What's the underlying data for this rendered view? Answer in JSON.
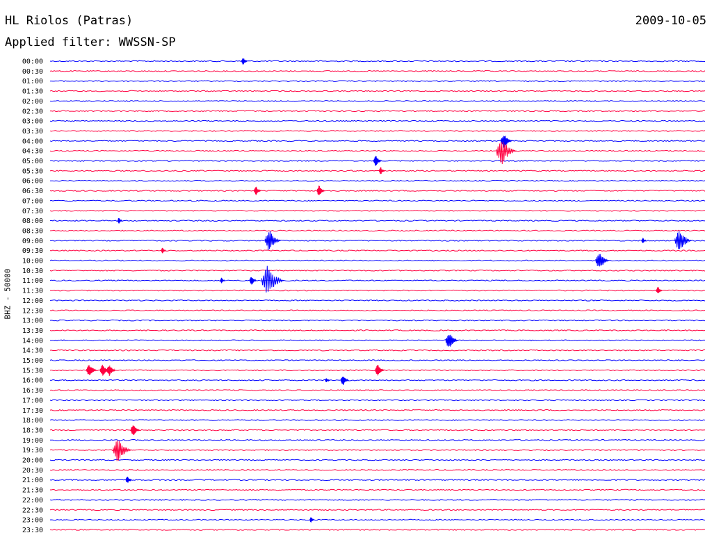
{
  "header": {
    "station": "HL Riolos (Patras)",
    "date": "2009-10-05",
    "filter_label": "Applied filter: WWSSN-SP"
  },
  "chart_data": {
    "type": "line",
    "title": "HL Riolos (Patras)",
    "subtitle": "Applied filter: WWSSN-SP",
    "ylabel": "BHZ - 50000",
    "colors": {
      "even_trace": "#0000ff",
      "odd_trace": "#ff0040"
    },
    "categories": [
      "00:00",
      "00:30",
      "01:00",
      "01:30",
      "02:00",
      "02:30",
      "03:00",
      "03:30",
      "04:00",
      "04:30",
      "05:00",
      "05:30",
      "06:00",
      "06:30",
      "07:00",
      "07:30",
      "08:00",
      "08:30",
      "09:00",
      "09:30",
      "10:00",
      "10:30",
      "11:00",
      "11:30",
      "12:00",
      "12:30",
      "13:00",
      "13:30",
      "14:00",
      "14:30",
      "15:00",
      "15:30",
      "16:00",
      "16:30",
      "17:00",
      "17:30",
      "18:00",
      "18:30",
      "19:00",
      "19:30",
      "20:00",
      "20:30",
      "21:00",
      "21:30",
      "22:00",
      "22:30",
      "23:00",
      "23:30"
    ],
    "xlim": [
      0,
      30
    ],
    "events": [
      {
        "trace": "00:00",
        "t": 8.9,
        "amp": 5
      },
      {
        "trace": "04:00",
        "t": 20.9,
        "amp": 10
      },
      {
        "trace": "04:30",
        "t": 20.9,
        "amp": 18
      },
      {
        "trace": "05:00",
        "t": 15.0,
        "amp": 7
      },
      {
        "trace": "05:30",
        "t": 15.2,
        "amp": 5
      },
      {
        "trace": "06:30",
        "t": 9.5,
        "amp": 6
      },
      {
        "trace": "06:30",
        "t": 12.4,
        "amp": 7
      },
      {
        "trace": "08:00",
        "t": 3.2,
        "amp": 4
      },
      {
        "trace": "09:00",
        "t": 10.2,
        "amp": 14
      },
      {
        "trace": "09:00",
        "t": 29.0,
        "amp": 15
      },
      {
        "trace": "09:00",
        "t": 27.2,
        "amp": 4
      },
      {
        "trace": "09:30",
        "t": 5.2,
        "amp": 4
      },
      {
        "trace": "10:00",
        "t": 25.3,
        "amp": 12
      },
      {
        "trace": "11:00",
        "t": 7.9,
        "amp": 4
      },
      {
        "trace": "11:00",
        "t": 9.3,
        "amp": 6
      },
      {
        "trace": "11:00",
        "t": 10.2,
        "amp": 20
      },
      {
        "trace": "11:30",
        "t": 27.9,
        "amp": 5
      },
      {
        "trace": "14:00",
        "t": 18.4,
        "amp": 11
      },
      {
        "trace": "15:30",
        "t": 1.9,
        "amp": 9
      },
      {
        "trace": "15:30",
        "t": 2.5,
        "amp": 8
      },
      {
        "trace": "15:30",
        "t": 2.8,
        "amp": 8
      },
      {
        "trace": "15:30",
        "t": 15.1,
        "amp": 8
      },
      {
        "trace": "16:00",
        "t": 13.5,
        "amp": 7
      },
      {
        "trace": "16:00",
        "t": 12.7,
        "amp": 3
      },
      {
        "trace": "18:30",
        "t": 3.9,
        "amp": 8
      },
      {
        "trace": "19:30",
        "t": 3.3,
        "amp": 16
      },
      {
        "trace": "21:00",
        "t": 3.6,
        "amp": 5
      },
      {
        "trace": "23:00",
        "t": 12.0,
        "amp": 4
      }
    ]
  }
}
